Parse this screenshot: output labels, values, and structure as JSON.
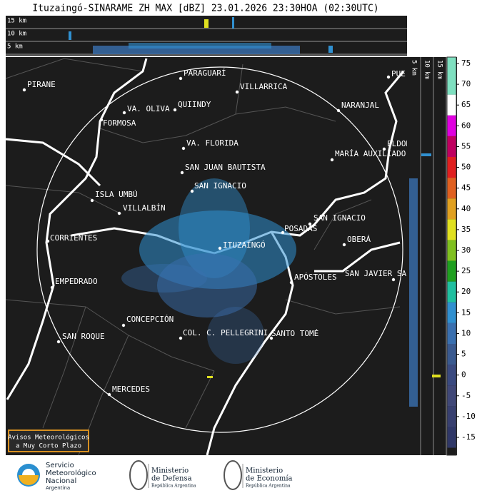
{
  "title": "Ituzaingó-SINARAME ZH MAX [dBZ] 23.01.2026 23:30HOA (02:30UTC)",
  "height_labels": [
    "15 km",
    "10 km",
    "5 km"
  ],
  "side_labels": [
    "5 km",
    "10 km",
    "15 km"
  ],
  "cities": [
    "PIRANE",
    "PARAGUARÍ",
    "VILLARRICA",
    "VA. OLIVA",
    "QUIINDY",
    "NARANJAL",
    "FORMOSA",
    "VA. FLORIDA",
    "ELDOR",
    "MARÍA AUXILIADO",
    "PUE",
    "SAN JUAN BAUTISTA",
    "SAN IGNACIO",
    "ISLA UMBÚ",
    "VILLALBÍN",
    "SAN IGNACIO",
    "POSADAS",
    "CORRIENTES",
    "OBERÁ",
    "ITUZAINGÓ",
    "APÓSTOLES",
    "SAN JAVIER SA",
    "EMPEDRADO",
    "CONCEPCIÓN",
    "COL. C. PELLEGRINI",
    "SANTO TOMÉ",
    "SAN ROQUE",
    "MERCEDES"
  ],
  "colorbar": {
    "ticks": [
      75,
      70,
      65,
      60,
      55,
      50,
      45,
      40,
      35,
      30,
      25,
      20,
      15,
      10,
      5,
      0,
      -5,
      -10,
      -15
    ],
    "colors": [
      "#7fe0c0",
      "#7fe0c0",
      "#ffffff",
      "#e000e0",
      "#c00060",
      "#e02020",
      "#e06020",
      "#e0a020",
      "#e0e020",
      "#80c020",
      "#20a020",
      "#20c0a0",
      "#3090d0",
      "#3a70b0",
      "#3a5a90",
      "#3a4a80",
      "#404878",
      "#384070",
      "#303868"
    ]
  },
  "notice": [
    "Avisos Meteorológicos",
    "a Muy Corto Plazo"
  ],
  "footer": {
    "smn": [
      "Servicio",
      "Meteorológico",
      "Nacional",
      "Argentina"
    ],
    "defensa": [
      "Ministerio",
      "de Defensa",
      "República Argentina"
    ],
    "economia": [
      "Ministerio",
      "de Economía",
      "República Argentina"
    ]
  }
}
